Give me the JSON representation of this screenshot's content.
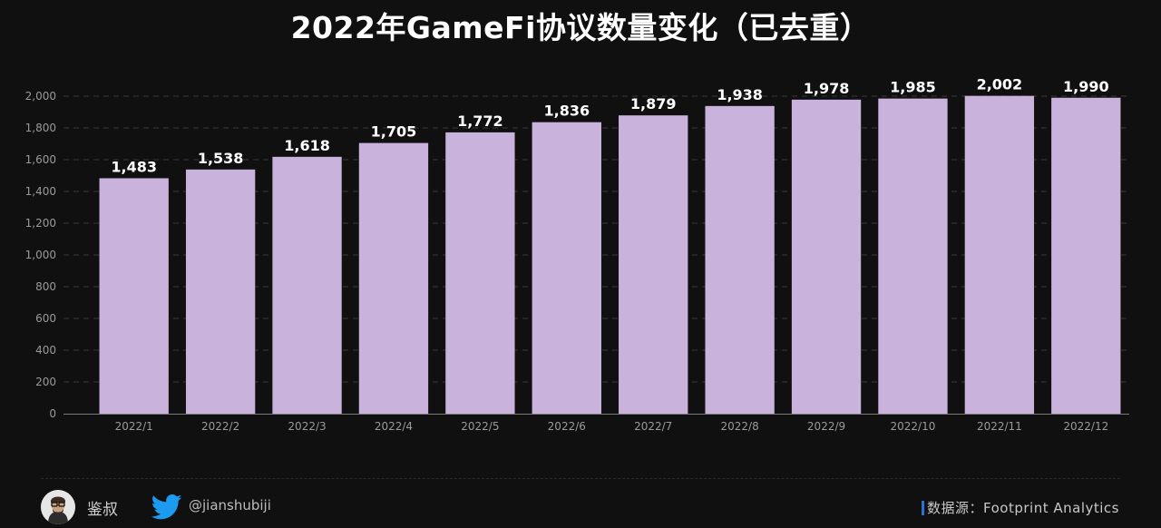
{
  "title": "2022年GameFi协议数量变化（已去重）",
  "chart_data": {
    "type": "bar",
    "title": "2022年GameFi协议数量变化（已去重）",
    "categories": [
      "2022/1",
      "2022/2",
      "2022/3",
      "2022/4",
      "2022/5",
      "2022/6",
      "2022/7",
      "2022/8",
      "2022/9",
      "2022/10",
      "2022/11",
      "2022/12"
    ],
    "values": [
      1483,
      1538,
      1618,
      1705,
      1772,
      1836,
      1879,
      1938,
      1978,
      1985,
      2002,
      1990
    ],
    "data_labels": [
      "1,483",
      "1,538",
      "1,618",
      "1,705",
      "1,772",
      "1,836",
      "1,879",
      "1,938",
      "1,978",
      "1,985",
      "2,002",
      "1,990"
    ],
    "yticks": [
      0,
      200,
      400,
      600,
      800,
      1000,
      1200,
      1400,
      1600,
      1800,
      2000
    ],
    "ytick_labels": [
      "0",
      "200",
      "400",
      "600",
      "800",
      "1,000",
      "1,200",
      "1,400",
      "1,600",
      "1,800",
      "2,000"
    ],
    "ylim": [
      0,
      2000
    ],
    "xlabel": "",
    "ylabel": "",
    "grid": true,
    "legend": "none",
    "bar_color": "#c9b3dd"
  },
  "footer": {
    "author": "鉴叔",
    "handle": "@jianshubiji",
    "source": "数据源：Footprint Analytics",
    "accent": "#2f6fd6",
    "twitter_color": "#1d9bf0"
  }
}
